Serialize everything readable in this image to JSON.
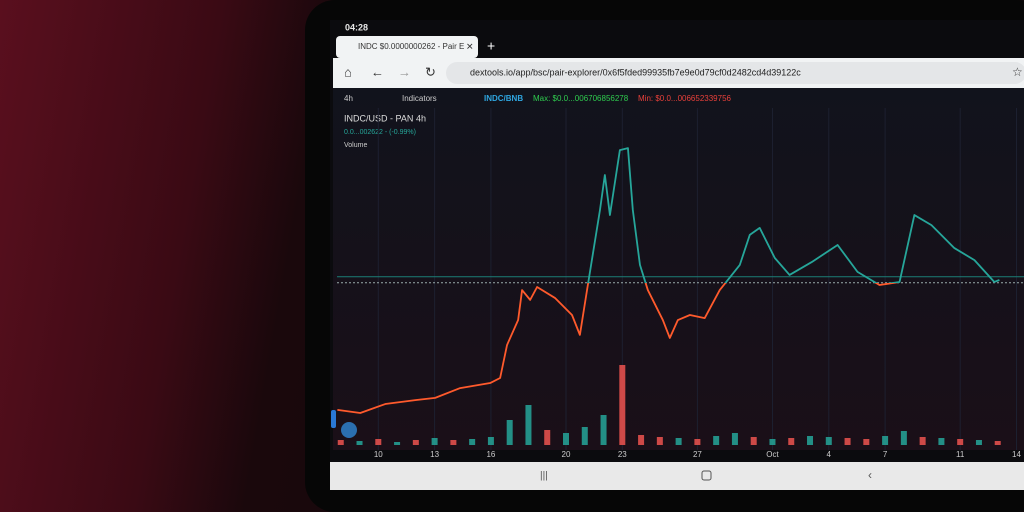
{
  "status_bar": {
    "time": "04:28"
  },
  "browser": {
    "tab_title": "INDC $0.0000000262 - Pair E",
    "url": "dextools.io/app/bsc/pair-explorer/0x6f5fded99935fb7e9e0d79cf0d2482cd4d39122c"
  },
  "toolbar": {
    "interval": "4h",
    "indicators": "Indicators",
    "pair": "INDC/BNB",
    "max": "Max: $0.0...006706856278",
    "min": "Min: $0.0...006652339756"
  },
  "chart_data": {
    "type": "line",
    "title": "INDC/USD - PAN",
    "interval": "4h",
    "subtitle": "0.0...002622 - (-0.99%)",
    "volume_label": "Volume",
    "x": [
      7.82,
      9.04,
      10.37,
      11.97,
      13.03,
      14.36,
      15.96,
      16.49,
      16.86,
      17.45,
      17.66,
      18.09,
      18.46,
      19.41,
      20.32,
      20.74,
      21.12,
      21.81,
      22.07,
      22.34,
      22.87,
      23.3,
      23.56,
      23.94,
      24.36,
      25.16,
      25.53,
      25.96,
      26.6,
      27.39,
      28.19,
      29.26,
      29.79,
      30.32,
      31.12,
      31.91,
      33.09,
      34.47,
      35.53,
      36.7,
      37.77,
      38.56,
      39.47,
      40.69,
      41.76,
      42.82,
      43.09
    ],
    "values": [
      3.6,
      2.5,
      5.7,
      7.1,
      7.9,
      11.4,
      13.2,
      15.0,
      26.8,
      35.7,
      46.4,
      42.9,
      47.5,
      43.6,
      37.5,
      30.4,
      46.4,
      75.0,
      87.5,
      73.2,
      96.4,
      97.1,
      75.0,
      55.4,
      46.4,
      35.7,
      29.3,
      35.7,
      37.5,
      36.4,
      46.4,
      55.4,
      66.1,
      68.6,
      57.9,
      51.8,
      56.4,
      62.5,
      52.9,
      48.2,
      49.3,
      73.2,
      69.6,
      61.4,
      57.1,
      49.3,
      50.0
    ],
    "reference_line": 49,
    "up_color": "#26a69a",
    "down_color": "#ff5a2c",
    "xlim": [
      7.8,
      44.4
    ],
    "ylim": [
      0,
      100
    ],
    "xticks": [
      10,
      13,
      16,
      20,
      23,
      27,
      {
        "value": 31,
        "label": "Oct"
      },
      {
        "value": 34,
        "label": "4"
      },
      {
        "value": 37,
        "label": "7"
      },
      {
        "value": 41,
        "label": "11"
      },
      {
        "value": 44,
        "label": "14"
      }
    ],
    "volume": {
      "x": [
        8,
        9,
        10,
        11,
        12,
        13,
        14,
        15,
        16,
        17,
        18,
        19,
        20,
        21,
        22,
        23,
        24,
        25,
        26,
        27,
        28,
        29,
        30,
        31,
        32,
        33,
        34,
        35,
        36,
        37,
        38,
        39,
        40,
        41,
        42,
        43
      ],
      "values": [
        5,
        4,
        6,
        3,
        5,
        7,
        5,
        6,
        8,
        25,
        40,
        15,
        12,
        18,
        30,
        80,
        10,
        8,
        7,
        6,
        9,
        12,
        8,
        6,
        7,
        9,
        8,
        7,
        6,
        9,
        14,
        8,
        7,
        6,
        5,
        4
      ],
      "colors": [
        "#ef5350",
        "#26a69a",
        "#ef5350",
        "#26a69a",
        "#ef5350",
        "#26a69a",
        "#ef5350",
        "#26a69a",
        "#26a69a",
        "#26a69a",
        "#26a69a",
        "#ef5350",
        "#26a69a",
        "#26a69a",
        "#26a69a",
        "#ef5350",
        "#ef5350",
        "#ef5350",
        "#26a69a",
        "#ef5350",
        "#26a69a",
        "#26a69a",
        "#ef5350",
        "#26a69a",
        "#ef5350",
        "#26a69a",
        "#26a69a",
        "#ef5350",
        "#ef5350",
        "#26a69a",
        "#26a69a",
        "#ef5350",
        "#26a69a",
        "#ef5350",
        "#26a69a",
        "#ef5350"
      ],
      "ylim": [
        0,
        100
      ]
    }
  }
}
